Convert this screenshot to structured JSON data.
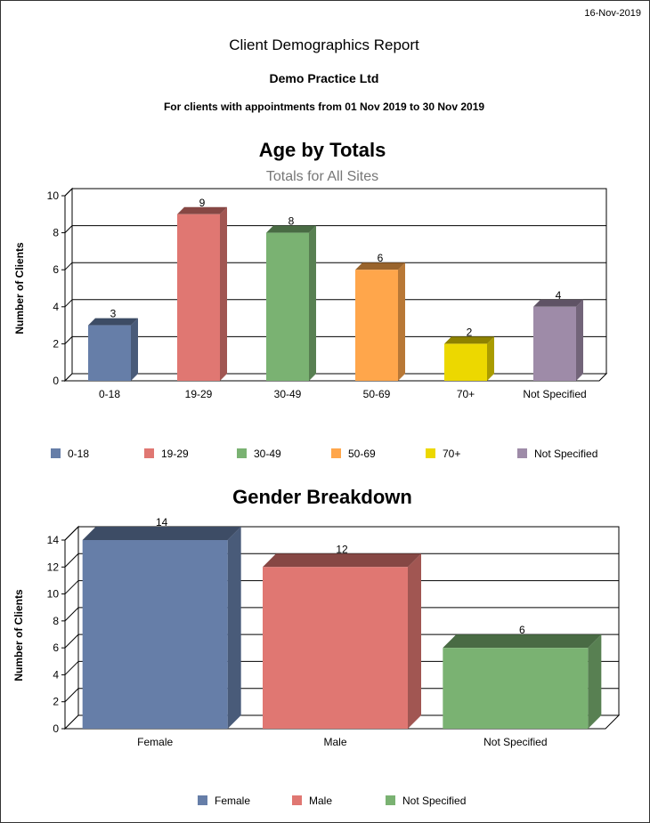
{
  "header": {
    "date": "16-Nov-2019",
    "report_title": "Client Demographics Report",
    "practice": "Demo Practice Ltd",
    "period": "For clients with appointments from 01 Nov 2019 to 30 Nov 2019"
  },
  "chart_data": [
    {
      "type": "bar",
      "title": "Age by Totals",
      "subtitle": "Totals for All Sites",
      "xlabel": "",
      "ylabel": "Number of Clients",
      "categories": [
        "0-18",
        "19-29",
        "30-49",
        "50-69",
        "70+",
        "Not Specified"
      ],
      "values": [
        3,
        9,
        8,
        6,
        2,
        4
      ],
      "colors": [
        "#667ea8",
        "#e07772",
        "#7ab272",
        "#ffa64b",
        "#ecd800",
        "#9e8ba8"
      ],
      "ylim": [
        0,
        10
      ],
      "yticks": [
        0,
        2,
        4,
        6,
        8,
        10
      ],
      "grid": true,
      "legend": [
        "0-18",
        "19-29",
        "30-49",
        "50-69",
        "70+",
        "Not Specified"
      ],
      "legend_position": "bottom"
    },
    {
      "type": "bar",
      "title": "Gender Breakdown",
      "subtitle": "",
      "xlabel": "",
      "ylabel": "Number of Clients",
      "categories": [
        "Female",
        "Male",
        "Not Specified"
      ],
      "values": [
        14,
        12,
        6
      ],
      "colors": [
        "#667ea8",
        "#e07772",
        "#7ab272"
      ],
      "ylim": [
        0,
        14
      ],
      "yticks": [
        0,
        2,
        4,
        6,
        8,
        10,
        12,
        14
      ],
      "grid": true,
      "legend": [
        "Female",
        "Male",
        "Not Specified"
      ],
      "legend_position": "bottom"
    }
  ]
}
